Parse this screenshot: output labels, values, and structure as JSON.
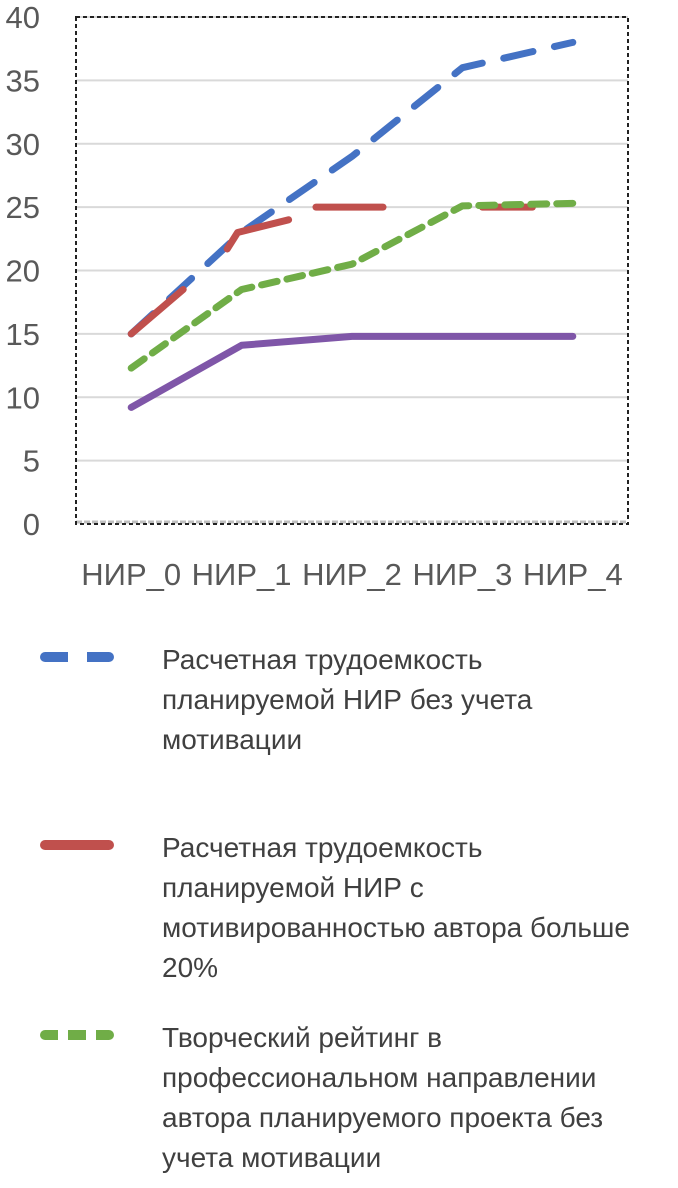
{
  "chart_data": {
    "type": "line",
    "categories": [
      "НИР_0",
      "НИР_1",
      "НИР_2",
      "НИР_3",
      "НИР_4"
    ],
    "ylim": [
      0,
      40
    ],
    "yticks": [
      "0",
      "5",
      "10",
      "15",
      "20",
      "25",
      "30",
      "35",
      "40"
    ],
    "grid": true,
    "legend_position": "bottom",
    "series": [
      {
        "name": "Расчетная трудоемкость планируемой НИР без учета мотивации",
        "values": [
          15,
          23,
          29,
          36,
          38
        ],
        "color": "#4472C4",
        "dash": "long-dash"
      },
      {
        "name": "Расчетная трудоемкость планируемой НИР с мотивированностью автора больше 20%",
        "values": [
          15,
          24,
          25,
          25,
          null
        ],
        "color": "#C0504D",
        "dash": "segments"
      },
      {
        "name": "Творческий рейтинг в профессиональном направлении автора планируемого проекта без учета мотивации",
        "values": [
          12.3,
          18.5,
          20.5,
          25.1,
          25.3
        ],
        "color": "#70AD47",
        "dash": "short-dash"
      },
      {
        "name": "",
        "values": [
          9.2,
          14.1,
          14.8,
          14.8,
          14.8
        ],
        "color": "#7F56A8",
        "dash": "solid"
      }
    ]
  }
}
